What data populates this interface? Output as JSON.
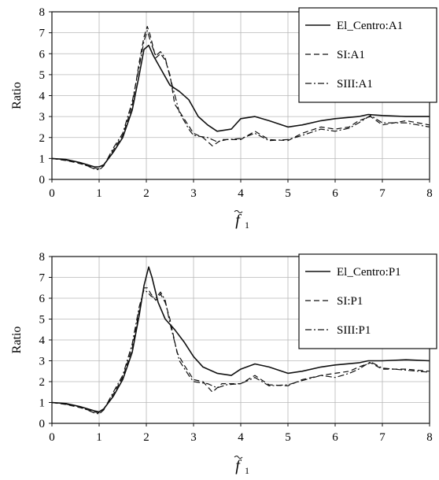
{
  "chart_data": [
    {
      "type": "line",
      "title": "",
      "xlabel_symbol": "f",
      "xlabel_subscript": "1",
      "ylabel": "Ratio",
      "xlim": [
        0,
        8
      ],
      "ylim": [
        0,
        8
      ],
      "xticks": [
        "0",
        "1",
        "2",
        "3",
        "4",
        "5",
        "6",
        "7",
        "8"
      ],
      "yticks": [
        "0",
        "1",
        "2",
        "3",
        "4",
        "5",
        "6",
        "7",
        "8"
      ],
      "grid": true,
      "legend_position": "top-right",
      "series": [
        {
          "name": "El_Centro:A1",
          "style": "solid",
          "points": [
            [
              0,
              1.0
            ],
            [
              0.3,
              0.95
            ],
            [
              0.6,
              0.8
            ],
            [
              0.9,
              0.6
            ],
            [
              1.0,
              0.6
            ],
            [
              1.1,
              0.7
            ],
            [
              1.3,
              1.3
            ],
            [
              1.5,
              2.0
            ],
            [
              1.7,
              3.3
            ],
            [
              1.85,
              5.0
            ],
            [
              1.95,
              6.2
            ],
            [
              2.05,
              6.4
            ],
            [
              2.15,
              5.9
            ],
            [
              2.3,
              5.3
            ],
            [
              2.5,
              4.5
            ],
            [
              2.7,
              4.2
            ],
            [
              2.9,
              3.8
            ],
            [
              3.1,
              3.0
            ],
            [
              3.3,
              2.6
            ],
            [
              3.5,
              2.3
            ],
            [
              3.8,
              2.4
            ],
            [
              4.0,
              2.9
            ],
            [
              4.3,
              3.0
            ],
            [
              4.6,
              2.8
            ],
            [
              5.0,
              2.5
            ],
            [
              5.3,
              2.6
            ],
            [
              5.7,
              2.8
            ],
            [
              6.0,
              2.9
            ],
            [
              6.5,
              3.0
            ],
            [
              6.7,
              3.1
            ],
            [
              7.0,
              3.05
            ],
            [
              7.5,
              3.0
            ],
            [
              8.0,
              3.0
            ]
          ]
        },
        {
          "name": "SI:A1",
          "style": "dash",
          "points": [
            [
              0,
              1.0
            ],
            [
              0.3,
              0.9
            ],
            [
              0.6,
              0.75
            ],
            [
              0.9,
              0.55
            ],
            [
              1.0,
              0.5
            ],
            [
              1.1,
              0.7
            ],
            [
              1.3,
              1.4
            ],
            [
              1.5,
              2.1
            ],
            [
              1.7,
              3.5
            ],
            [
              1.85,
              5.6
            ],
            [
              1.95,
              6.8
            ],
            [
              2.02,
              7.3
            ],
            [
              2.08,
              6.9
            ],
            [
              2.2,
              5.8
            ],
            [
              2.3,
              6.0
            ],
            [
              2.4,
              5.7
            ],
            [
              2.5,
              5.0
            ],
            [
              2.6,
              3.6
            ],
            [
              2.8,
              2.9
            ],
            [
              3.0,
              2.2
            ],
            [
              3.2,
              2.0
            ],
            [
              3.4,
              1.6
            ],
            [
              3.6,
              1.9
            ],
            [
              4.0,
              1.9
            ],
            [
              4.3,
              2.3
            ],
            [
              4.6,
              1.9
            ],
            [
              5.0,
              1.85
            ],
            [
              5.3,
              2.2
            ],
            [
              5.7,
              2.5
            ],
            [
              6.0,
              2.4
            ],
            [
              6.3,
              2.5
            ],
            [
              6.5,
              2.8
            ],
            [
              6.75,
              3.0
            ],
            [
              7.0,
              2.6
            ],
            [
              7.5,
              2.8
            ],
            [
              8.0,
              2.6
            ]
          ]
        },
        {
          "name": "SIII:A1",
          "style": "dashdot",
          "points": [
            [
              0,
              1.0
            ],
            [
              0.3,
              0.92
            ],
            [
              0.6,
              0.78
            ],
            [
              0.9,
              0.5
            ],
            [
              1.0,
              0.45
            ],
            [
              1.1,
              0.65
            ],
            [
              1.3,
              1.5
            ],
            [
              1.5,
              2.2
            ],
            [
              1.7,
              3.7
            ],
            [
              1.85,
              5.4
            ],
            [
              1.95,
              6.6
            ],
            [
              2.02,
              7.1
            ],
            [
              2.1,
              6.5
            ],
            [
              2.2,
              5.9
            ],
            [
              2.3,
              6.1
            ],
            [
              2.4,
              5.8
            ],
            [
              2.5,
              4.9
            ],
            [
              2.7,
              3.2
            ],
            [
              2.9,
              2.4
            ],
            [
              3.0,
              2.1
            ],
            [
              3.3,
              2.0
            ],
            [
              3.5,
              1.8
            ],
            [
              3.7,
              1.9
            ],
            [
              4.0,
              1.95
            ],
            [
              4.3,
              2.2
            ],
            [
              4.6,
              1.85
            ],
            [
              5.0,
              1.9
            ],
            [
              5.3,
              2.1
            ],
            [
              5.7,
              2.4
            ],
            [
              6.0,
              2.3
            ],
            [
              6.3,
              2.45
            ],
            [
              6.5,
              2.7
            ],
            [
              6.75,
              3.05
            ],
            [
              7.0,
              2.7
            ],
            [
              7.5,
              2.7
            ],
            [
              8.0,
              2.5
            ]
          ]
        }
      ]
    },
    {
      "type": "line",
      "title": "",
      "xlabel_symbol": "f",
      "xlabel_subscript": "1",
      "ylabel": "Ratio",
      "xlim": [
        0,
        8
      ],
      "ylim": [
        0,
        8
      ],
      "xticks": [
        "0",
        "1",
        "2",
        "3",
        "4",
        "5",
        "6",
        "7",
        "8"
      ],
      "yticks": [
        "0",
        "1",
        "2",
        "3",
        "4",
        "5",
        "6",
        "7",
        "8"
      ],
      "grid": true,
      "legend_position": "top-right",
      "series": [
        {
          "name": "El_Centro:P1",
          "style": "solid",
          "points": [
            [
              0,
              1.0
            ],
            [
              0.3,
              0.95
            ],
            [
              0.6,
              0.8
            ],
            [
              0.9,
              0.6
            ],
            [
              1.0,
              0.55
            ],
            [
              1.1,
              0.7
            ],
            [
              1.3,
              1.3
            ],
            [
              1.5,
              2.1
            ],
            [
              1.7,
              3.4
            ],
            [
              1.85,
              5.2
            ],
            [
              1.95,
              6.6
            ],
            [
              2.05,
              7.5
            ],
            [
              2.12,
              7.0
            ],
            [
              2.25,
              5.8
            ],
            [
              2.4,
              5.0
            ],
            [
              2.6,
              4.5
            ],
            [
              2.8,
              3.9
            ],
            [
              3.0,
              3.2
            ],
            [
              3.2,
              2.7
            ],
            [
              3.5,
              2.4
            ],
            [
              3.8,
              2.3
            ],
            [
              4.0,
              2.6
            ],
            [
              4.3,
              2.85
            ],
            [
              4.6,
              2.7
            ],
            [
              5.0,
              2.4
            ],
            [
              5.3,
              2.5
            ],
            [
              5.7,
              2.7
            ],
            [
              6.0,
              2.8
            ],
            [
              6.5,
              2.9
            ],
            [
              6.7,
              3.0
            ],
            [
              7.0,
              3.0
            ],
            [
              7.5,
              3.05
            ],
            [
              8.0,
              3.0
            ]
          ]
        },
        {
          "name": "SI:P1",
          "style": "dash",
          "points": [
            [
              0,
              1.0
            ],
            [
              0.3,
              0.9
            ],
            [
              0.6,
              0.75
            ],
            [
              0.9,
              0.55
            ],
            [
              1.0,
              0.5
            ],
            [
              1.1,
              0.7
            ],
            [
              1.3,
              1.4
            ],
            [
              1.5,
              2.2
            ],
            [
              1.7,
              3.6
            ],
            [
              1.85,
              5.4
            ],
            [
              1.95,
              6.5
            ],
            [
              2.02,
              6.5
            ],
            [
              2.1,
              6.2
            ],
            [
              2.2,
              5.9
            ],
            [
              2.3,
              6.2
            ],
            [
              2.4,
              5.8
            ],
            [
              2.5,
              5.0
            ],
            [
              2.65,
              3.4
            ],
            [
              2.8,
              2.8
            ],
            [
              3.0,
              2.1
            ],
            [
              3.2,
              2.0
            ],
            [
              3.4,
              1.5
            ],
            [
              3.6,
              1.9
            ],
            [
              4.0,
              1.9
            ],
            [
              4.3,
              2.3
            ],
            [
              4.6,
              1.85
            ],
            [
              5.0,
              1.8
            ],
            [
              5.3,
              2.1
            ],
            [
              5.7,
              2.3
            ],
            [
              6.0,
              2.4
            ],
            [
              6.3,
              2.5
            ],
            [
              6.5,
              2.7
            ],
            [
              6.75,
              2.9
            ],
            [
              7.0,
              2.6
            ],
            [
              7.5,
              2.6
            ],
            [
              8.0,
              2.5
            ]
          ]
        },
        {
          "name": "SIII:P1",
          "style": "dashdot",
          "points": [
            [
              0,
              1.0
            ],
            [
              0.3,
              0.92
            ],
            [
              0.6,
              0.78
            ],
            [
              0.9,
              0.5
            ],
            [
              1.0,
              0.45
            ],
            [
              1.1,
              0.65
            ],
            [
              1.3,
              1.5
            ],
            [
              1.5,
              2.3
            ],
            [
              1.7,
              3.8
            ],
            [
              1.85,
              5.6
            ],
            [
              1.95,
              6.4
            ],
            [
              2.02,
              6.3
            ],
            [
              2.1,
              6.1
            ],
            [
              2.2,
              6.0
            ],
            [
              2.3,
              6.3
            ],
            [
              2.4,
              5.9
            ],
            [
              2.5,
              4.8
            ],
            [
              2.7,
              3.0
            ],
            [
              2.9,
              2.3
            ],
            [
              3.0,
              2.0
            ],
            [
              3.3,
              1.9
            ],
            [
              3.5,
              1.7
            ],
            [
              3.7,
              1.85
            ],
            [
              4.0,
              1.9
            ],
            [
              4.3,
              2.2
            ],
            [
              4.6,
              1.8
            ],
            [
              5.0,
              1.85
            ],
            [
              5.3,
              2.05
            ],
            [
              5.7,
              2.3
            ],
            [
              6.0,
              2.2
            ],
            [
              6.3,
              2.4
            ],
            [
              6.5,
              2.6
            ],
            [
              6.75,
              2.95
            ],
            [
              7.0,
              2.65
            ],
            [
              7.5,
              2.55
            ],
            [
              8.0,
              2.45
            ]
          ]
        }
      ]
    }
  ]
}
